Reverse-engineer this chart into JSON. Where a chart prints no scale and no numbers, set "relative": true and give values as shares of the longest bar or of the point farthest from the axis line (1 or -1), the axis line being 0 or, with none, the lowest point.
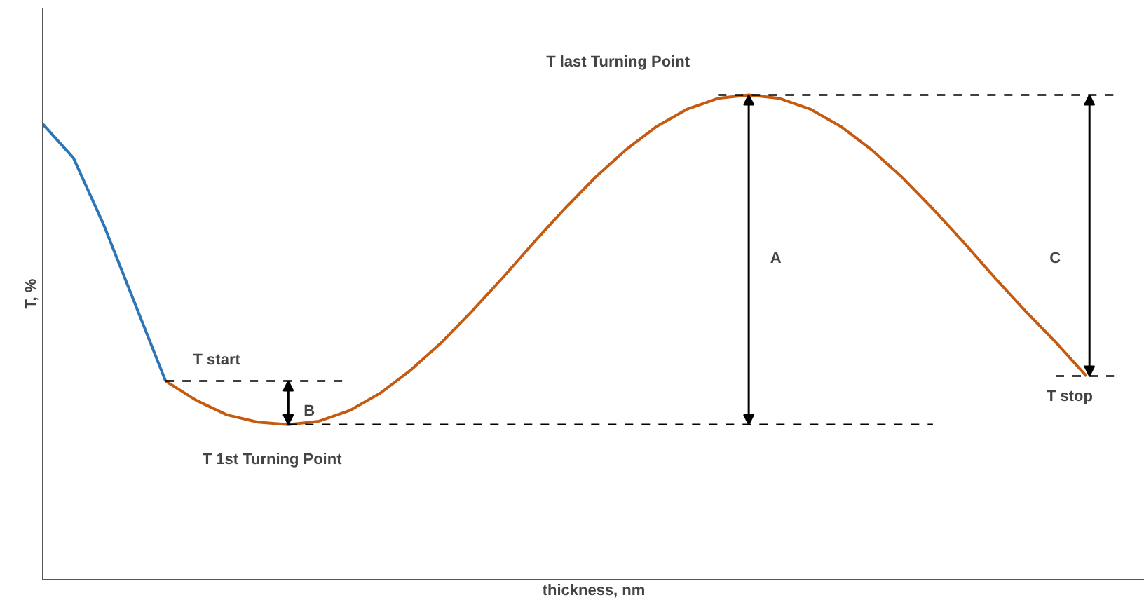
{
  "chart_data": {
    "type": "line",
    "relative": true,
    "xlabel": "thickness, nm",
    "ylabel": "T, %",
    "marker": "none",
    "line_style": "solid",
    "categories": [
      null,
      null,
      null,
      null,
      null,
      null,
      null,
      null,
      null,
      null,
      null,
      null,
      null,
      null,
      null,
      null,
      null,
      null,
      null,
      null,
      null,
      null,
      null,
      null,
      null,
      null,
      null,
      null,
      null,
      null,
      null,
      null,
      null,
      null,
      null
    ],
    "series": [
      {
        "color": "#2e75b6",
        "values": [
          0.94,
          0.87,
          0.73,
          0.57,
          0.41,
          null,
          null,
          null,
          null,
          null,
          null,
          null,
          null,
          null,
          null,
          null,
          null,
          null,
          null,
          null,
          null,
          null,
          null,
          null,
          null,
          null,
          null,
          null,
          null,
          null,
          null,
          null,
          null,
          null,
          null
        ]
      },
      {
        "color": "#c55a11",
        "values": [
          null,
          null,
          null,
          null,
          0.41,
          0.37,
          0.34,
          0.325,
          0.32,
          0.327,
          0.349,
          0.385,
          0.433,
          0.49,
          0.555,
          0.624,
          0.696,
          0.765,
          0.83,
          0.887,
          0.935,
          0.971,
          0.993,
          1.0,
          0.993,
          0.971,
          0.935,
          0.887,
          0.83,
          0.765,
          0.696,
          0.624,
          0.555,
          0.49,
          0.42
        ]
      }
    ],
    "ref_lines": [
      {
        "axis": "y",
        "value": 0.41,
        "label": "T start",
        "line_style": "dashed",
        "color": "#000000"
      },
      {
        "axis": "y",
        "value": 0.32,
        "label": "T 1st Turning Point",
        "line_style": "dashed",
        "color": "#000000"
      },
      {
        "axis": "y",
        "value": 1.0,
        "label": "T last Turning Point",
        "line_style": "dashed",
        "color": "#000000"
      },
      {
        "axis": "y",
        "value": 0.42,
        "label": "T stop",
        "line_style": "dashed",
        "color": "#000000"
      }
    ],
    "annotations": [
      "A",
      "B",
      "C"
    ]
  }
}
